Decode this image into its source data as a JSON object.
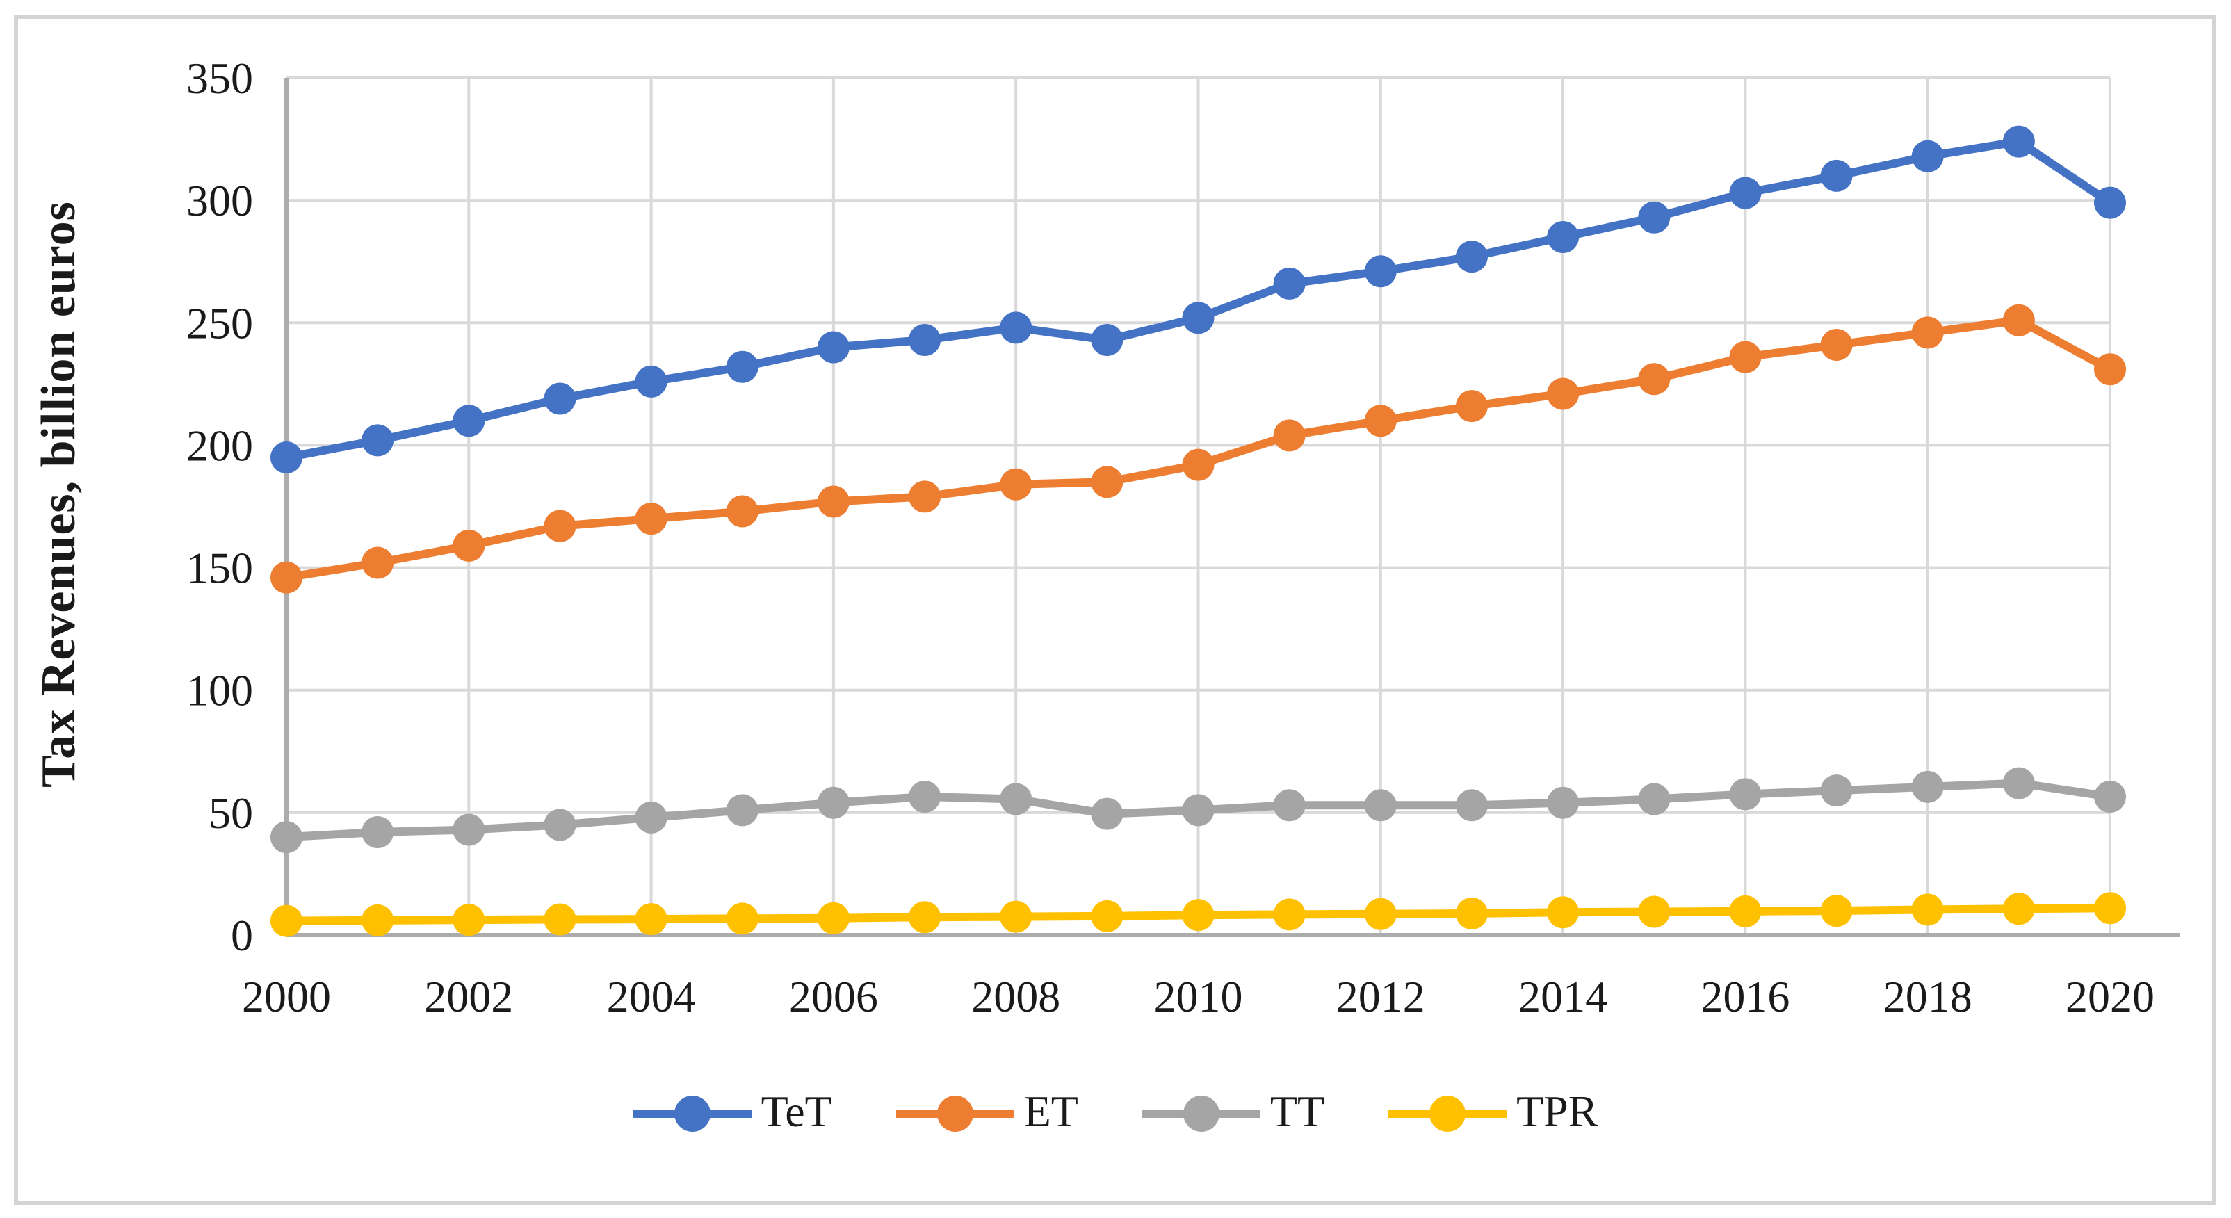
{
  "chart_data": {
    "type": "line",
    "title": "",
    "xlabel": "",
    "ylabel": "Tax Revenues, billion euros",
    "ylim": [
      0,
      350
    ],
    "ytick_step": 50,
    "yticks": [
      0,
      50,
      100,
      150,
      200,
      250,
      300,
      350
    ],
    "xtick_years": [
      2000,
      2002,
      2004,
      2006,
      2008,
      2010,
      2012,
      2014,
      2016,
      2018,
      2020
    ],
    "x": [
      2000,
      2001,
      2002,
      2003,
      2004,
      2005,
      2006,
      2007,
      2008,
      2009,
      2010,
      2011,
      2012,
      2013,
      2014,
      2015,
      2016,
      2017,
      2018,
      2019,
      2020
    ],
    "grid": true,
    "legend_position": "bottom",
    "series": [
      {
        "name": "TeT",
        "color": "#4472C4",
        "values": [
          195,
          202,
          210,
          219,
          226,
          232,
          240,
          243,
          248,
          243,
          252,
          266,
          271,
          277,
          285,
          293,
          303,
          310,
          318,
          324,
          299
        ]
      },
      {
        "name": "ET",
        "color": "#ED7D31",
        "values": [
          146,
          152,
          159,
          167,
          170,
          173,
          177,
          179,
          184,
          185,
          192,
          204,
          210,
          216,
          221,
          227,
          236,
          241,
          246,
          251,
          231
        ]
      },
      {
        "name": "TT",
        "color": "#A5A5A5",
        "values": [
          40,
          42,
          43,
          45,
          48,
          51,
          54,
          56.5,
          55.5,
          49.5,
          51,
          53,
          53,
          53,
          54,
          55.5,
          57.5,
          59,
          60.5,
          62,
          56.5
        ]
      },
      {
        "name": "TPR",
        "color": "#FFC000",
        "values": [
          5.8,
          6,
          6.2,
          6.4,
          6.5,
          6.7,
          6.9,
          7.3,
          7.5,
          7.7,
          8.2,
          8.4,
          8.6,
          8.8,
          9.3,
          9.5,
          9.7,
          9.9,
          10.4,
          10.7,
          11
        ]
      }
    ],
    "style": {
      "gridline_color": "#D9D9D9",
      "axis_color": "#ACACAC",
      "text_color": "#1a1a1a",
      "frame_color": "#D4D4D4",
      "background": "#FFFFFF"
    }
  }
}
